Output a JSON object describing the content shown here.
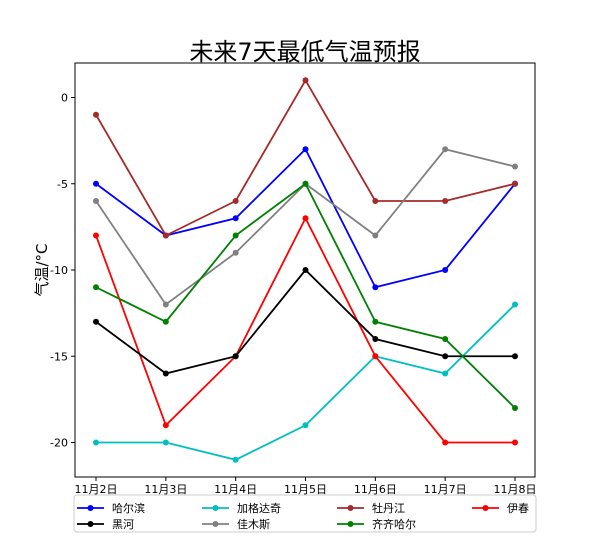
{
  "chart_data": {
    "type": "line",
    "title": "未来7天最低气温预报",
    "xlabel": "",
    "ylabel": "气温/°C",
    "categories": [
      "11月2日",
      "11月3日",
      "11月4日",
      "11月5日",
      "11月6日",
      "11月7日",
      "11月8日"
    ],
    "ylim": [
      -22,
      2
    ],
    "yticks": [
      0,
      -5,
      -10,
      -15,
      -20
    ],
    "grid": false,
    "legend_position": "bottom",
    "series": [
      {
        "name": "哈尔滨",
        "color": "#0000ff",
        "values": [
          -5,
          -8,
          -7,
          -3,
          -11,
          -10,
          -5
        ]
      },
      {
        "name": "加格达奇",
        "color": "#00bfbf",
        "values": [
          -20,
          -20,
          -21,
          -19,
          -15,
          -16,
          -12
        ]
      },
      {
        "name": "牡丹江",
        "color": "#a52a2a",
        "values": [
          -1,
          -8,
          -6,
          1,
          -6,
          -6,
          -5
        ]
      },
      {
        "name": "伊春",
        "color": "#ff0000",
        "values": [
          -8,
          -19,
          -15,
          -7,
          -15,
          -20,
          -20
        ]
      },
      {
        "name": "黑河",
        "color": "#000000",
        "values": [
          -13,
          -16,
          -15,
          -10,
          -14,
          -15,
          -15
        ]
      },
      {
        "name": "佳木斯",
        "color": "#808080",
        "values": [
          -6,
          -12,
          -9,
          -5,
          -8,
          -3,
          -4
        ]
      },
      {
        "name": "齐齐哈尔",
        "color": "#008000",
        "values": [
          -11,
          -13,
          -8,
          -5,
          -13,
          -14,
          -18
        ]
      }
    ]
  }
}
